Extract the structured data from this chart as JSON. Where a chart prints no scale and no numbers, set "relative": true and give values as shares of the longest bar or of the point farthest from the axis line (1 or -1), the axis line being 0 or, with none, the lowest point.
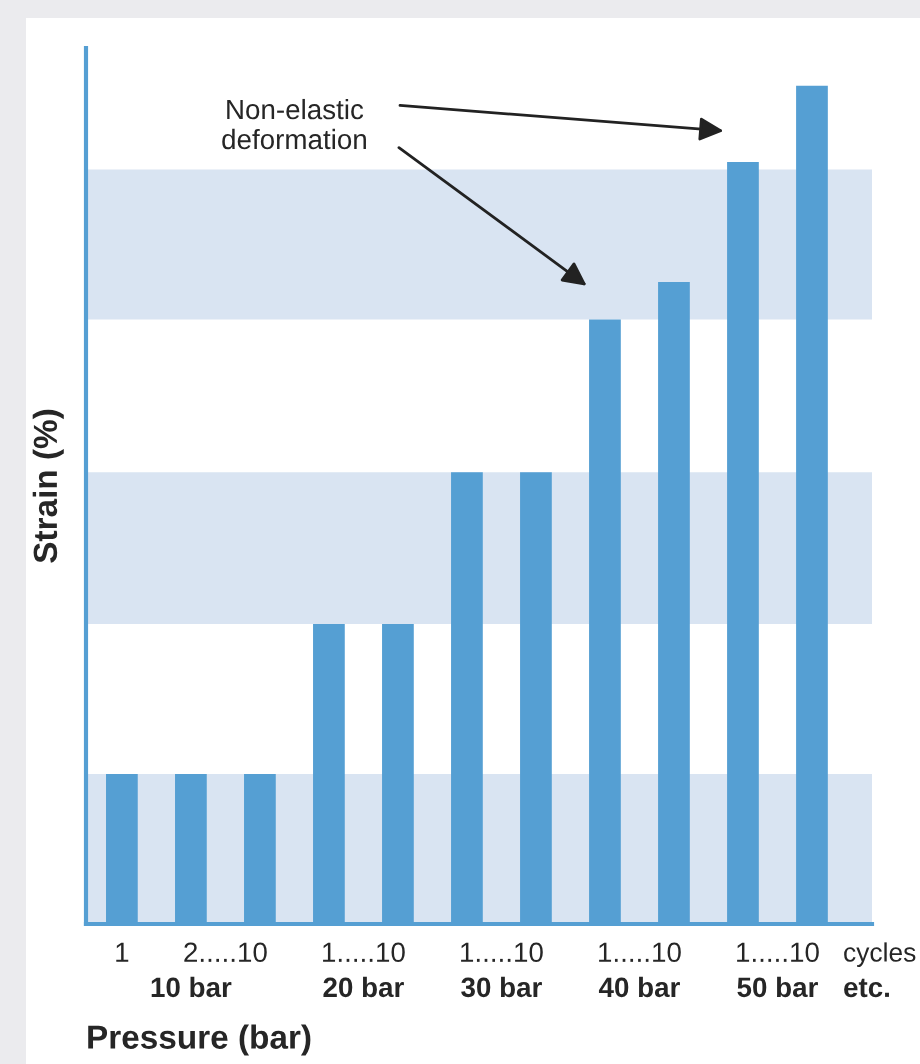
{
  "chart_data": {
    "type": "bar",
    "relative": true,
    "xlabel": "Pressure (bar)",
    "ylabel": "Strain (%)",
    "categories": [
      "1",
      "2.....10",
      null,
      "1.....10",
      null,
      "1.....10",
      null,
      "1.....10",
      null,
      "1.....10",
      null
    ],
    "values": [
      0.179,
      0.179,
      0.179,
      0.358,
      0.358,
      0.539,
      0.539,
      0.721,
      0.766,
      0.909,
      1
    ],
    "color": "#559fd3",
    "bands": [
      {
        "axis": "y",
        "from": 0,
        "to": 0.179,
        "color": "#d9e4f2"
      },
      {
        "axis": "y",
        "from": 0.358,
        "to": 0.539,
        "color": "#d9e4f2"
      },
      {
        "axis": "y",
        "from": 0.721,
        "to": 0.9,
        "color": "#d9e4f2"
      }
    ],
    "annotations": [
      "Non-elastic\ndeformation",
      "cycles",
      "10 bar",
      "20 bar",
      "30 bar",
      "40 bar",
      "50 bar",
      "etc."
    ],
    "legend": false
  }
}
